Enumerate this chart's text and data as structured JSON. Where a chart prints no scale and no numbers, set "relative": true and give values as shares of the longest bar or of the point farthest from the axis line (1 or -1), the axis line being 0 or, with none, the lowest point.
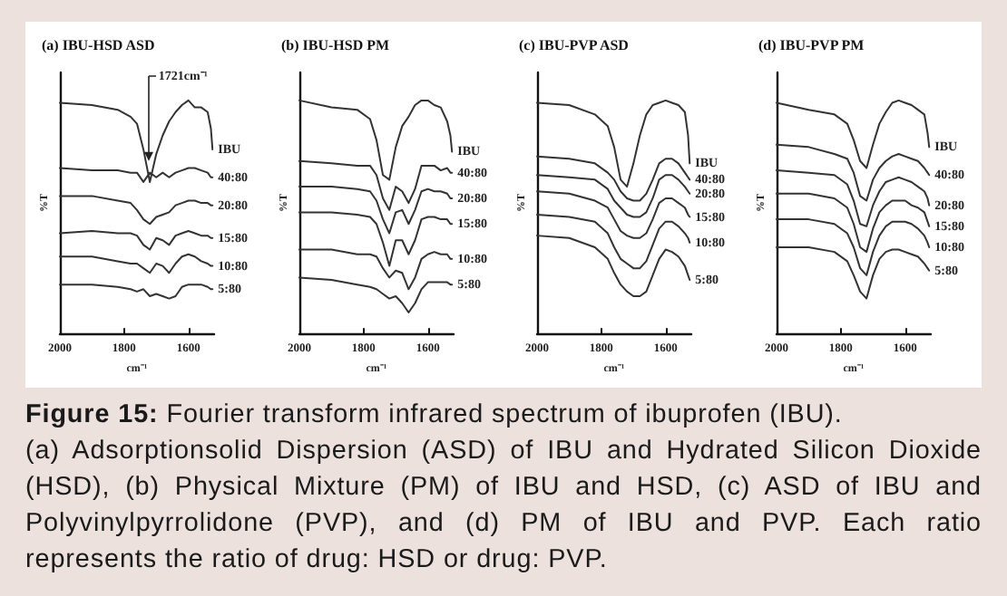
{
  "chart_data": [
    {
      "type": "line",
      "title": "(a) IBU-HSD ASD",
      "xlabel": "cm⁻¹",
      "ylabel": "%T",
      "relative": true,
      "legend": false,
      "grid": false,
      "marker": "none",
      "line_style": "solid",
      "xlim": [
        2000,
        1520
      ],
      "xticks": [
        2000,
        1800,
        1600
      ],
      "x": [
        2000,
        1900,
        1820,
        1780,
        1760,
        1740,
        1720,
        1700,
        1680,
        1660,
        1640,
        1620,
        1600,
        1580,
        1560,
        1540,
        1530,
        1525
      ],
      "annotations": [
        {
          "text": "1721cm⁻¹",
          "x": 1721,
          "y": 0.74
        },
        "Figure 15: Fourier transform infrared spectrum of ibuprofen (IBU).",
        "(a) Adsorptionsolid Dispersion (ASD) of IBU and Hydrated Silicon Dioxide (HSD), (b) Physical Mixture (PM) of IBU and HSD, (c) ASD of IBU and Polyvinylpyrrolidone (PVP), and (d) PM of IBU and PVP. Each ratio represents the ratio of drug: HSD or drug: PVP."
      ],
      "series": [
        {
          "name": "IBU",
          "color": "#333333",
          "values": [
            0.99,
            0.98,
            0.96,
            0.93,
            0.9,
            0.79,
            0.65,
            0.77,
            0.85,
            0.91,
            0.95,
            0.98,
            1.0,
            0.97,
            0.97,
            0.95,
            0.88,
            0.79
          ]
        },
        {
          "name": "40:80",
          "color": "#333333",
          "values": [
            0.71,
            0.7,
            0.7,
            0.69,
            0.69,
            0.65,
            0.69,
            0.67,
            0.69,
            0.67,
            0.69,
            0.7,
            0.71,
            0.71,
            0.7,
            0.69,
            0.67,
            0.67
          ]
        },
        {
          "name": "20:80",
          "color": "#333333",
          "values": [
            0.59,
            0.59,
            0.57,
            0.56,
            0.53,
            0.49,
            0.47,
            0.5,
            0.51,
            0.52,
            0.55,
            0.56,
            0.57,
            0.57,
            0.56,
            0.56,
            0.55,
            0.55
          ]
        },
        {
          "name": "15:80",
          "color": "#333333",
          "values": [
            0.43,
            0.44,
            0.43,
            0.43,
            0.42,
            0.38,
            0.36,
            0.41,
            0.4,
            0.38,
            0.42,
            0.43,
            0.44,
            0.43,
            0.42,
            0.42,
            0.41,
            0.41
          ]
        },
        {
          "name": "10:80",
          "color": "#333333",
          "values": [
            0.33,
            0.33,
            0.31,
            0.3,
            0.3,
            0.28,
            0.26,
            0.3,
            0.29,
            0.26,
            0.3,
            0.33,
            0.34,
            0.33,
            0.31,
            0.3,
            0.29,
            0.29
          ]
        },
        {
          "name": "5:80",
          "color": "#333333",
          "values": [
            0.21,
            0.21,
            0.2,
            0.19,
            0.18,
            0.19,
            0.16,
            0.17,
            0.16,
            0.15,
            0.16,
            0.2,
            0.21,
            0.21,
            0.21,
            0.2,
            0.19,
            0.19
          ]
        }
      ]
    },
    {
      "type": "line",
      "title": "(b) IBU-HSD PM",
      "xlabel": "cm⁻¹",
      "ylabel": "%T",
      "relative": true,
      "legend": false,
      "grid": false,
      "marker": "none",
      "line_style": "solid",
      "xlim": [
        2000,
        1520
      ],
      "xticks": [
        2000,
        1800,
        1600
      ],
      "x": [
        2000,
        1900,
        1820,
        1780,
        1760,
        1740,
        1720,
        1700,
        1680,
        1660,
        1640,
        1620,
        1600,
        1580,
        1560,
        1540,
        1530,
        1525
      ],
      "series": [
        {
          "name": "IBU",
          "color": "#333333",
          "values": [
            1.0,
            0.97,
            0.96,
            0.92,
            0.83,
            0.68,
            0.66,
            0.8,
            0.89,
            0.93,
            0.98,
            1.0,
            1.0,
            0.98,
            0.97,
            0.91,
            0.85,
            0.78
          ]
        },
        {
          "name": "40:80",
          "color": "#333333",
          "values": [
            0.74,
            0.73,
            0.72,
            0.72,
            0.68,
            0.58,
            0.53,
            0.63,
            0.61,
            0.56,
            0.62,
            0.72,
            0.72,
            0.72,
            0.7,
            0.71,
            0.69,
            0.69
          ]
        },
        {
          "name": "20:80",
          "color": "#333333",
          "values": [
            0.63,
            0.63,
            0.62,
            0.61,
            0.57,
            0.49,
            0.43,
            0.52,
            0.53,
            0.47,
            0.53,
            0.61,
            0.62,
            0.61,
            0.61,
            0.6,
            0.58,
            0.58
          ]
        },
        {
          "name": "15:80",
          "color": "#333333",
          "values": [
            0.52,
            0.52,
            0.51,
            0.5,
            0.47,
            0.39,
            0.29,
            0.4,
            0.4,
            0.34,
            0.4,
            0.49,
            0.5,
            0.5,
            0.49,
            0.49,
            0.47,
            0.47
          ]
        },
        {
          "name": "10:80",
          "color": "#333333",
          "values": [
            0.36,
            0.36,
            0.34,
            0.34,
            0.33,
            0.28,
            0.24,
            0.27,
            0.26,
            0.19,
            0.24,
            0.32,
            0.34,
            0.35,
            0.34,
            0.34,
            0.32,
            0.32
          ]
        },
        {
          "name": "5:80",
          "color": "#333333",
          "values": [
            0.24,
            0.23,
            0.21,
            0.2,
            0.19,
            0.17,
            0.15,
            0.16,
            0.13,
            0.09,
            0.13,
            0.19,
            0.22,
            0.22,
            0.22,
            0.22,
            0.21,
            0.21
          ]
        }
      ]
    },
    {
      "type": "line",
      "title": "(c) IBU-PVP ASD",
      "xlabel": "cm⁻¹",
      "ylabel": "%T",
      "relative": true,
      "legend": false,
      "grid": false,
      "marker": "none",
      "line_style": "solid",
      "xlim": [
        2000,
        1520
      ],
      "xticks": [
        2000,
        1800,
        1600
      ],
      "x": [
        2000,
        1900,
        1820,
        1780,
        1760,
        1740,
        1720,
        1700,
        1680,
        1660,
        1640,
        1620,
        1600,
        1580,
        1560,
        1540,
        1530,
        1525
      ],
      "series": [
        {
          "name": "IBU",
          "color": "#333333",
          "values": [
            0.99,
            0.98,
            0.94,
            0.89,
            0.8,
            0.66,
            0.63,
            0.73,
            0.85,
            0.94,
            0.98,
            0.99,
            1.0,
            0.99,
            0.98,
            0.95,
            0.85,
            0.73
          ]
        },
        {
          "name": "40:80",
          "color": "#333333",
          "values": [
            0.76,
            0.75,
            0.73,
            0.69,
            0.66,
            0.61,
            0.58,
            0.57,
            0.57,
            0.6,
            0.66,
            0.73,
            0.75,
            0.75,
            0.73,
            0.69,
            0.67,
            0.66
          ]
        },
        {
          "name": "20:80",
          "color": "#333333",
          "values": [
            0.68,
            0.67,
            0.66,
            0.62,
            0.57,
            0.54,
            0.51,
            0.5,
            0.5,
            0.52,
            0.58,
            0.66,
            0.68,
            0.68,
            0.66,
            0.63,
            0.61,
            0.6
          ]
        },
        {
          "name": "15:80",
          "color": "#333333",
          "values": [
            0.61,
            0.6,
            0.57,
            0.54,
            0.49,
            0.44,
            0.42,
            0.41,
            0.41,
            0.43,
            0.49,
            0.56,
            0.58,
            0.58,
            0.56,
            0.54,
            0.51,
            0.5
          ]
        },
        {
          "name": "10:80",
          "color": "#333333",
          "values": [
            0.51,
            0.5,
            0.48,
            0.43,
            0.37,
            0.32,
            0.3,
            0.28,
            0.28,
            0.31,
            0.38,
            0.45,
            0.48,
            0.48,
            0.46,
            0.43,
            0.41,
            0.39
          ]
        },
        {
          "name": "5:80",
          "color": "#333333",
          "values": [
            0.42,
            0.41,
            0.37,
            0.32,
            0.26,
            0.21,
            0.18,
            0.16,
            0.16,
            0.18,
            0.25,
            0.32,
            0.36,
            0.35,
            0.33,
            0.29,
            0.25,
            0.23
          ]
        }
      ]
    },
    {
      "type": "line",
      "title": "(d) IBU-PVP PM",
      "xlabel": "cm⁻¹",
      "ylabel": "%T",
      "relative": true,
      "legend": false,
      "grid": false,
      "marker": "none",
      "line_style": "solid",
      "xlim": [
        2000,
        1520
      ],
      "xticks": [
        2000,
        1800,
        1600
      ],
      "x": [
        2000,
        1900,
        1820,
        1780,
        1760,
        1740,
        1720,
        1700,
        1680,
        1660,
        1640,
        1620,
        1600,
        1580,
        1560,
        1540,
        1530,
        1525
      ],
      "series": [
        {
          "name": "IBU",
          "color": "#333333",
          "values": [
            0.99,
            0.96,
            0.94,
            0.9,
            0.83,
            0.74,
            0.71,
            0.81,
            0.9,
            0.95,
            0.99,
            1.0,
            0.99,
            0.98,
            0.96,
            0.94,
            0.86,
            0.8
          ]
        },
        {
          "name": "40:80",
          "color": "#333333",
          "values": [
            0.81,
            0.8,
            0.77,
            0.75,
            0.69,
            0.59,
            0.57,
            0.66,
            0.71,
            0.74,
            0.76,
            0.77,
            0.76,
            0.75,
            0.74,
            0.71,
            0.69,
            0.68
          ]
        },
        {
          "name": "20:80",
          "color": "#333333",
          "values": [
            0.7,
            0.69,
            0.68,
            0.64,
            0.57,
            0.47,
            0.46,
            0.55,
            0.61,
            0.65,
            0.66,
            0.67,
            0.66,
            0.65,
            0.63,
            0.61,
            0.58,
            0.55
          ]
        },
        {
          "name": "15:80",
          "color": "#333333",
          "values": [
            0.6,
            0.6,
            0.58,
            0.54,
            0.47,
            0.37,
            0.35,
            0.45,
            0.52,
            0.55,
            0.57,
            0.57,
            0.57,
            0.55,
            0.54,
            0.52,
            0.48,
            0.46
          ]
        },
        {
          "name": "10:80",
          "color": "#333333",
          "values": [
            0.49,
            0.49,
            0.47,
            0.43,
            0.37,
            0.28,
            0.25,
            0.35,
            0.42,
            0.46,
            0.48,
            0.48,
            0.48,
            0.47,
            0.45,
            0.42,
            0.39,
            0.37
          ]
        },
        {
          "name": "5:80",
          "color": "#333333",
          "values": [
            0.37,
            0.37,
            0.35,
            0.31,
            0.25,
            0.18,
            0.15,
            0.25,
            0.32,
            0.35,
            0.36,
            0.36,
            0.35,
            0.34,
            0.33,
            0.3,
            0.28,
            0.27
          ]
        }
      ]
    }
  ]
}
